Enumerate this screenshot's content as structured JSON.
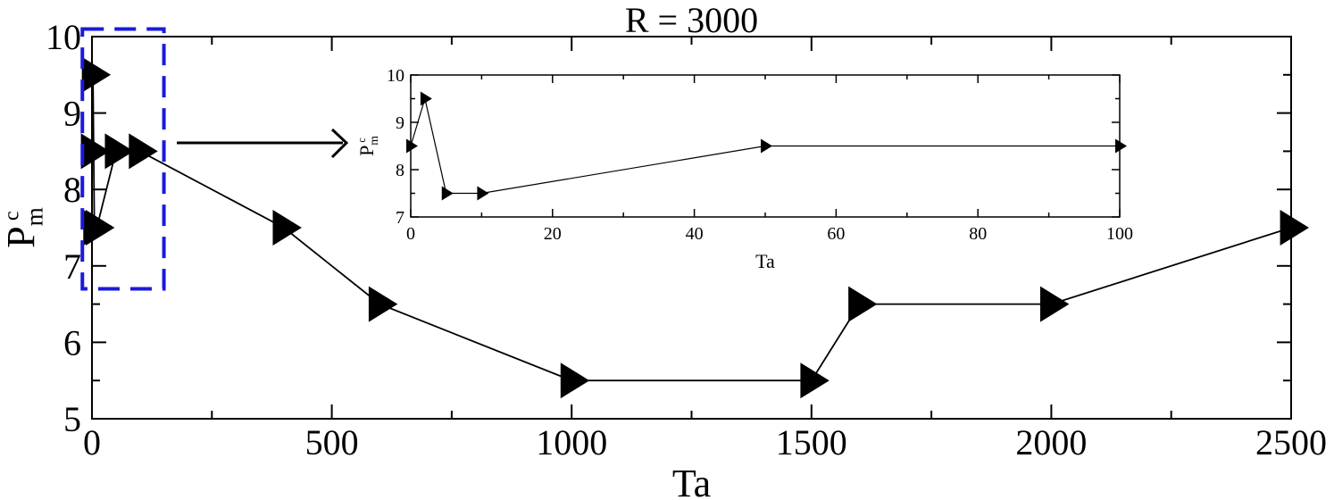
{
  "chart_data": [
    {
      "type": "line",
      "title": "R = 3000",
      "xlabel": "Ta",
      "ylabel": "P",
      "ylabel_sub": "m",
      "ylabel_sup": "c",
      "xlim": [
        0,
        2500
      ],
      "ylim": [
        5,
        10
      ],
      "xticks": [
        0,
        500,
        1000,
        1500,
        2000,
        2500
      ],
      "yticks": [
        5,
        6,
        7,
        8,
        9,
        10
      ],
      "grid": false,
      "marker": "right-triangle",
      "series": [
        {
          "x": [
            0,
            2,
            5,
            10,
            50,
            100,
            400,
            600,
            1000,
            1500,
            1600,
            2000,
            2500
          ],
          "y": [
            8.5,
            9.5,
            7.5,
            7.5,
            8.5,
            8.5,
            7.5,
            6.5,
            5.5,
            5.5,
            6.5,
            6.5,
            7.5
          ]
        }
      ],
      "highlight_region": {
        "x": [
          -20,
          150
        ],
        "y": [
          6.7,
          10.1
        ],
        "color": "#1a1adb"
      },
      "annotation_arrow": "points from highlighted region to inset",
      "colors": {
        "line": "#000000",
        "highlight": "#1a1adb"
      }
    },
    {
      "type": "line",
      "role": "inset",
      "title": "",
      "xlabel": "Ta",
      "ylabel": "P",
      "ylabel_sub": "m",
      "ylabel_sup": "c",
      "xlim": [
        0,
        100
      ],
      "ylim": [
        7,
        10
      ],
      "xticks": [
        0,
        20,
        40,
        60,
        80,
        100
      ],
      "yticks": [
        7,
        8,
        9,
        10
      ],
      "grid": false,
      "marker": "right-triangle",
      "series": [
        {
          "x": [
            0,
            2,
            5,
            10,
            50,
            100
          ],
          "y": [
            8.5,
            9.5,
            7.5,
            7.5,
            8.5,
            8.5
          ]
        }
      ]
    }
  ]
}
